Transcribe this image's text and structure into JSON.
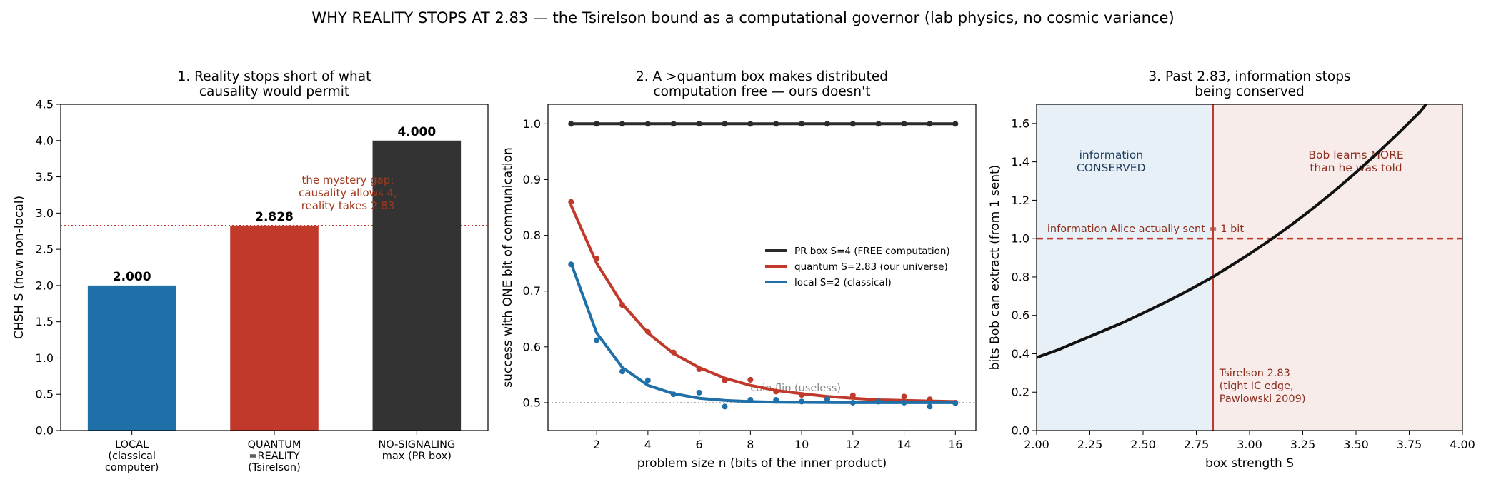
{
  "figure": {
    "title": "WHY REALITY STOPS AT 2.83 — the Tsirelson bound as a computational governor (lab physics, no cosmic variance)"
  },
  "chart_data": [
    {
      "type": "bar",
      "title_lines": [
        "1. Reality stops short of what",
        "causality would permit"
      ],
      "ylabel": "CHSH  S  (how non-local)",
      "ylim": [
        0,
        4.5
      ],
      "yticks": [
        "0.0",
        "0.5",
        "1.0",
        "1.5",
        "2.0",
        "2.5",
        "3.0",
        "3.5",
        "4.0",
        "4.5"
      ],
      "categories": [
        {
          "lines": [
            "LOCAL",
            "(classical",
            "computer)"
          ]
        },
        {
          "lines": [
            "QUANTUM",
            "=REALITY",
            "(Tsirelson)"
          ]
        },
        {
          "lines": [
            "NO-SIGNALING",
            "max (PR box)"
          ]
        }
      ],
      "values": [
        2.0,
        2.828,
        4.0
      ],
      "value_labels": [
        "2.000",
        "2.828",
        "4.000"
      ],
      "colors": [
        "#1f6fa8",
        "#c0392b",
        "#333333"
      ],
      "reference_line": {
        "y": 2.828,
        "color": "#c0392b",
        "style": "dotted"
      },
      "annotation": {
        "lines": [
          "the mystery gap:",
          "causality allows 4,",
          "reality takes 2.83"
        ],
        "color": "#a0391d"
      }
    },
    {
      "type": "line",
      "title_lines": [
        "2. A >quantum box makes distributed",
        "computation free — ours doesn't"
      ],
      "xlabel": "problem size  n  (bits of the inner product)",
      "ylabel": "success with ONE bit of communication",
      "xlim": [
        0.1,
        16.8
      ],
      "ylim": [
        0.45,
        1.035
      ],
      "xticks": [
        "2",
        "4",
        "6",
        "8",
        "10",
        "12",
        "14",
        "16"
      ],
      "yticks": [
        "0.5",
        "0.6",
        "0.7",
        "0.8",
        "0.9",
        "1.0"
      ],
      "x": [
        1,
        2,
        3,
        4,
        5,
        6,
        7,
        8,
        9,
        10,
        11,
        12,
        13,
        14,
        15,
        16
      ],
      "series": [
        {
          "name": "PR box S=4  (FREE computation)",
          "color": "#2b2b2b",
          "values": [
            1.0,
            1.0,
            1.0,
            1.0,
            1.0,
            1.0,
            1.0,
            1.0,
            1.0,
            1.0,
            1.0,
            1.0,
            1.0,
            1.0,
            1.0,
            1.0
          ],
          "points": [
            1.0,
            1.0,
            1.0,
            1.0,
            1.0,
            1.0,
            1.0,
            1.0,
            1.0,
            1.0,
            1.0,
            1.0,
            1.0,
            1.0,
            1.0,
            1.0
          ]
        },
        {
          "name": "quantum S=2.83 (our universe)",
          "color": "#c0392b",
          "values": [
            0.854,
            0.75,
            0.677,
            0.625,
            0.588,
            0.563,
            0.544,
            0.531,
            0.522,
            0.516,
            0.511,
            0.508,
            0.505,
            0.504,
            0.503,
            0.502
          ],
          "points": [
            0.86,
            0.758,
            0.675,
            0.627,
            0.59,
            0.56,
            0.54,
            0.541,
            0.52,
            0.514,
            0.507,
            0.513,
            0.502,
            0.511,
            0.506,
            0.5
          ]
        },
        {
          "name": "local S=2  (classical)",
          "color": "#1f6fa8",
          "values": [
            0.75,
            0.625,
            0.563,
            0.531,
            0.516,
            0.508,
            0.504,
            0.502,
            0.501,
            0.5005,
            0.5002,
            0.5001,
            0.5001,
            0.5,
            0.5,
            0.5
          ],
          "points": [
            0.748,
            0.612,
            0.556,
            0.54,
            0.515,
            0.518,
            0.493,
            0.505,
            0.505,
            0.502,
            0.506,
            0.5,
            0.502,
            0.5,
            0.493,
            0.499
          ]
        }
      ],
      "reference_line": {
        "y": 0.5,
        "color": "#999999",
        "style": "dotted",
        "label": "coin flip (useless)"
      },
      "legend_position": "center-right"
    },
    {
      "type": "line",
      "title_lines": [
        "3. Past 2.83, information stops",
        "being conserved"
      ],
      "xlabel": "box strength  S",
      "ylabel": "bits Bob can extract (from 1 sent)",
      "xlim": [
        2.0,
        4.0
      ],
      "ylim": [
        0,
        1.7
      ],
      "xticks": [
        "2.00",
        "2.25",
        "2.50",
        "2.75",
        "3.00",
        "3.25",
        "3.50",
        "3.75",
        "4.00"
      ],
      "yticks": [
        "0.0",
        "0.2",
        "0.4",
        "0.6",
        "0.8",
        "1.0",
        "1.2",
        "1.4",
        "1.6"
      ],
      "curve": {
        "color": "#111111",
        "x": [
          2.0,
          2.1,
          2.2,
          2.3,
          2.4,
          2.5,
          2.6,
          2.7,
          2.8,
          2.828,
          2.9,
          3.0,
          3.1,
          3.2,
          3.3,
          3.4,
          3.5,
          3.6,
          3.7,
          3.75,
          3.8,
          3.83
        ],
        "y": [
          0.38,
          0.42,
          0.467,
          0.513,
          0.56,
          0.612,
          0.665,
          0.722,
          0.783,
          0.8,
          0.85,
          0.92,
          0.995,
          1.075,
          1.16,
          1.25,
          1.345,
          1.445,
          1.55,
          1.605,
          1.66,
          1.7
        ]
      },
      "vertical_line": {
        "x": 2.828,
        "color": "#c0392b"
      },
      "reference_line": {
        "y": 1.0,
        "color": "#c0392b",
        "style": "dashed",
        "label": "information Alice actually sent = 1 bit"
      },
      "regions": [
        {
          "label_lines": [
            "information",
            "CONSERVED"
          ],
          "fill": "#e8f0f7",
          "text_color": "#1f3d5c"
        },
        {
          "label_lines": [
            "Bob learns MORE",
            "than he was told"
          ],
          "fill": "#f8eceb",
          "text_color": "#8a2e1f"
        }
      ],
      "annotation": {
        "lines": [
          "Tsirelson 2.83",
          "(tight IC edge,",
          "Pawlowski 2009)"
        ],
        "color": "#8a2e1f"
      }
    }
  ]
}
